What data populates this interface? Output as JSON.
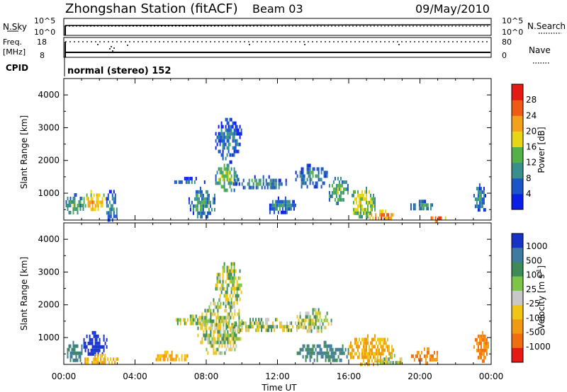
{
  "header": {
    "station": "Zhongshan Station (fitACF)",
    "beam": "Beam 03",
    "date": "09/May/2010"
  },
  "status_panels": {
    "nsky": {
      "label": "N.Sky",
      "ticks": [
        "10^5",
        "10^0"
      ]
    },
    "nsearch": {
      "label": "N.Search",
      "ticks": [
        "10^5",
        "10^0"
      ]
    },
    "freq": {
      "label_line1": "Freq.",
      "label_line2": "[MHz]",
      "ticks": [
        "18",
        "8"
      ]
    },
    "nave": {
      "label": "Nave",
      "ticks": [
        "80",
        "0"
      ]
    },
    "cpid": {
      "label": "CPID",
      "value": "normal (stereo) 152"
    }
  },
  "axes": {
    "x_label": "Time UT",
    "y_label": "Slant Range [km]",
    "x_ticks": [
      "00:00",
      "04:00",
      "08:00",
      "12:00",
      "16:00",
      "20:00",
      "00:00"
    ],
    "y_ticks": [
      "1000",
      "2000",
      "3000",
      "4000"
    ]
  },
  "power_scale": {
    "label": "Power [dB]",
    "ticks": [
      "4",
      "8",
      "12",
      "16",
      "20",
      "24",
      "28"
    ],
    "colors": [
      "#0a1ee6",
      "#1b55c8",
      "#3a8f8c",
      "#56b04a",
      "#e7d516",
      "#f3a11c",
      "#ef5a14",
      "#e41b14"
    ]
  },
  "velocity_scale": {
    "label": "Velocity [m s",
    "label_sup": "-1",
    "label_end": "]",
    "ticks": [
      "1000",
      "500",
      "100",
      "25",
      "-25",
      "-100",
      "-500",
      "-1000"
    ],
    "colors": [
      "#1732c6",
      "#3f7aa0",
      "#3e8a59",
      "#7cc546",
      "#c8c8c8",
      "#f1c515",
      "#f09a14",
      "#ee6e10",
      "#e61a14"
    ]
  },
  "chart_data": [
    {
      "type": "heatmap",
      "title": "Power",
      "xlabel": "Time UT",
      "ylabel": "Slant Range [km]",
      "xlim": [
        0,
        24
      ],
      "ylim": [
        180,
        4500
      ],
      "colorbar": "Power [dB]",
      "clim": [
        0,
        30
      ],
      "regions": [
        {
          "t": [
            0.1,
            1.1
          ],
          "r": [
            400,
            1000
          ],
          "db": 10
        },
        {
          "t": [
            1.1,
            2.3
          ],
          "r": [
            500,
            1100
          ],
          "db": 18
        },
        {
          "t": [
            2.3,
            3.0
          ],
          "r": [
            200,
            1100
          ],
          "db": 6
        },
        {
          "t": [
            6.2,
            8.0
          ],
          "r": [
            1300,
            1500
          ],
          "db": 6
        },
        {
          "t": [
            7.0,
            8.5
          ],
          "r": [
            300,
            1200
          ],
          "db": 8
        },
        {
          "t": [
            8.5,
            9.8
          ],
          "r": [
            1100,
            1900
          ],
          "db": 12
        },
        {
          "t": [
            9.5,
            12.5
          ],
          "r": [
            1150,
            1550
          ],
          "db": 7
        },
        {
          "t": [
            8.5,
            10.0
          ],
          "r": [
            2000,
            3300
          ],
          "db": 5
        },
        {
          "t": [
            11.3,
            13.0
          ],
          "r": [
            400,
            900
          ],
          "db": 6
        },
        {
          "t": [
            13.0,
            14.8
          ],
          "r": [
            1200,
            1900
          ],
          "db": 6
        },
        {
          "t": [
            14.8,
            16.0
          ],
          "r": [
            700,
            1500
          ],
          "db": 10
        },
        {
          "t": [
            16.0,
            17.5
          ],
          "r": [
            300,
            1200
          ],
          "db": 14
        },
        {
          "t": [
            17.0,
            18.5
          ],
          "r": [
            200,
            500
          ],
          "db": 22
        },
        {
          "t": [
            19.3,
            20.8
          ],
          "r": [
            500,
            800
          ],
          "db": 8
        },
        {
          "t": [
            20.6,
            21.4
          ],
          "r": [
            180,
            400
          ],
          "db": 24
        },
        {
          "t": [
            23.0,
            23.7
          ],
          "r": [
            400,
            1300
          ],
          "db": 6
        }
      ]
    },
    {
      "type": "heatmap",
      "title": "Velocity",
      "xlabel": "Time UT",
      "ylabel": "Slant Range [km]",
      "xlim": [
        0,
        24
      ],
      "ylim": [
        180,
        4500
      ],
      "colorbar": "Velocity [m s-1]",
      "clim": [
        -1000,
        1000
      ],
      "regions": [
        {
          "t": [
            0.1,
            1.1
          ],
          "r": [
            300,
            900
          ],
          "v": 100
        },
        {
          "t": [
            1.1,
            2.4
          ],
          "r": [
            500,
            1200
          ],
          "v": 1000
        },
        {
          "t": [
            1.0,
            3.0
          ],
          "r": [
            200,
            500
          ],
          "v": -100
        },
        {
          "t": [
            5.0,
            7.0
          ],
          "r": [
            300,
            600
          ],
          "v": -100
        },
        {
          "t": [
            6.2,
            8.3
          ],
          "r": [
            1400,
            1700
          ],
          "v": 0
        },
        {
          "t": [
            7.5,
            10.0
          ],
          "r": [
            500,
            2200
          ],
          "v": 0
        },
        {
          "t": [
            9.0,
            13.5
          ],
          "r": [
            1200,
            1600
          ],
          "v": 0
        },
        {
          "t": [
            8.5,
            10.0
          ],
          "r": [
            2000,
            3300
          ],
          "v": 0
        },
        {
          "t": [
            13.0,
            15.0
          ],
          "r": [
            1200,
            1900
          ],
          "v": 0
        },
        {
          "t": [
            13.0,
            16.0
          ],
          "r": [
            300,
            900
          ],
          "v": 100
        },
        {
          "t": [
            16.0,
            18.5
          ],
          "r": [
            200,
            1100
          ],
          "v": -100
        },
        {
          "t": [
            17.5,
            19.0
          ],
          "r": [
            200,
            500
          ],
          "v": 0
        },
        {
          "t": [
            19.5,
            21.0
          ],
          "r": [
            250,
            700
          ],
          "v": -500
        },
        {
          "t": [
            23.0,
            23.8
          ],
          "r": [
            300,
            1200
          ],
          "v": -500
        }
      ]
    }
  ]
}
